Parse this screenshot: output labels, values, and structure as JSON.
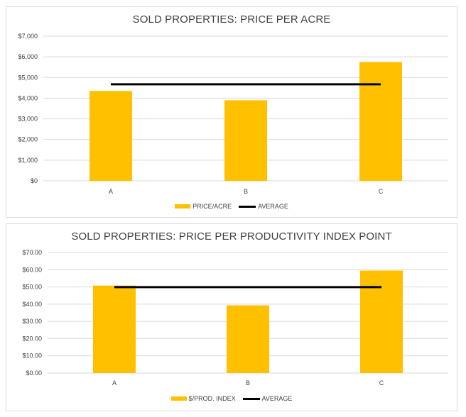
{
  "colors": {
    "bar": "#ffc000",
    "average": "#000000",
    "grid": "#d9d9d9",
    "text": "#404040"
  },
  "chart_data": [
    {
      "type": "bar",
      "title": "SOLD PROPERTIES: PRICE PER ACRE",
      "categories": [
        "A",
        "B",
        "C"
      ],
      "series": [
        {
          "name": "PRICE/ACRE",
          "type": "bar",
          "values": [
            4350,
            3900,
            5750
          ]
        },
        {
          "name": "AVERAGE",
          "type": "line",
          "values": [
            4670,
            4670,
            4670
          ]
        }
      ],
      "ylim": [
        0,
        7000
      ],
      "yticks": [
        0,
        1000,
        2000,
        3000,
        4000,
        5000,
        6000,
        7000
      ],
      "ytick_labels": [
        "$0",
        "$1,000",
        "$2,000",
        "$3,000",
        "$4,000",
        "$5,000",
        "$6,000",
        "$7,000"
      ],
      "grid": true,
      "legend": "bottom"
    },
    {
      "type": "bar",
      "title": "SOLD PROPERTIES: PRICE PER PRODUCTIVITY INDEX  POINT",
      "categories": [
        "A",
        "B",
        "C"
      ],
      "series": [
        {
          "name": "$/PROD. INDEX",
          "type": "bar",
          "values": [
            50.8,
            39.3,
            59.5
          ]
        },
        {
          "name": "AVERAGE",
          "type": "line",
          "values": [
            49.9,
            49.9,
            49.9
          ]
        }
      ],
      "ylim": [
        0,
        70
      ],
      "yticks": [
        0,
        10,
        20,
        30,
        40,
        50,
        60,
        70
      ],
      "ytick_labels": [
        "$0.00",
        "$10.00",
        "$20.00",
        "$30.00",
        "$40.00",
        "$50.00",
        "$60.00",
        "$70.00"
      ],
      "grid": true,
      "legend": "bottom"
    }
  ]
}
